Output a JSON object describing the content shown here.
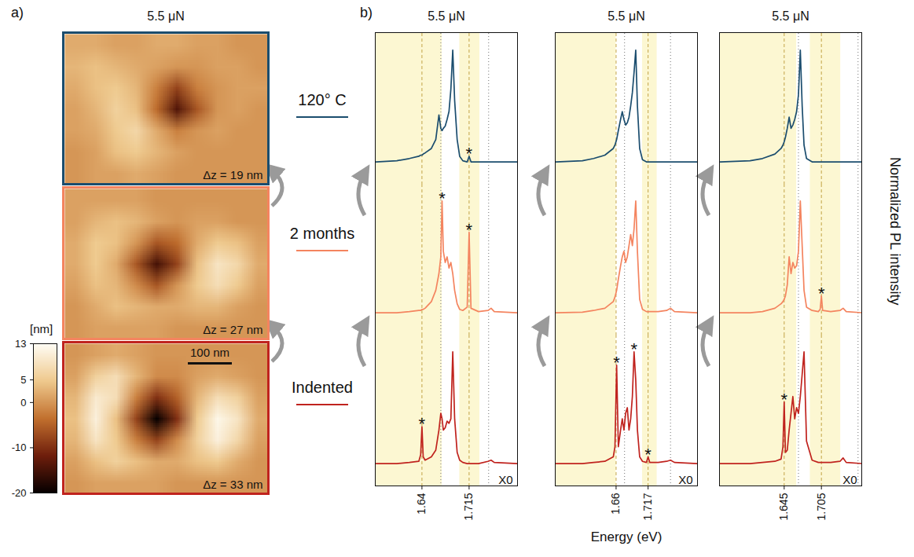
{
  "chart_data": [
    {
      "type": "heatmap",
      "panel_label": "a)",
      "title": "5.5 μN",
      "color": "#1b4d6e",
      "annotation": "Δz = 19 nm",
      "cells": [
        [
          2,
          2,
          1,
          1,
          2,
          2,
          1,
          1,
          0,
          0
        ],
        [
          3,
          4,
          3,
          2,
          1,
          0,
          0,
          1,
          1,
          0
        ],
        [
          2,
          4,
          5,
          3,
          -2,
          -8,
          -2,
          0,
          1,
          1
        ],
        [
          1,
          3,
          6,
          4,
          -4,
          -14,
          -6,
          0,
          1,
          0
        ],
        [
          1,
          2,
          5,
          7,
          2,
          -2,
          0,
          1,
          0,
          0
        ],
        [
          0,
          1,
          4,
          5,
          3,
          1,
          0,
          0,
          0,
          0
        ],
        [
          0,
          1,
          1,
          2,
          1,
          0,
          0,
          0,
          0,
          0
        ]
      ]
    },
    {
      "type": "heatmap",
      "color": "#f4845f",
      "annotation": "Δz = 27 nm",
      "cells": [
        [
          1,
          1,
          1,
          1,
          0,
          0,
          0,
          0,
          0,
          0
        ],
        [
          1,
          3,
          4,
          3,
          1,
          0,
          1,
          1,
          0,
          0
        ],
        [
          2,
          5,
          4,
          0,
          -6,
          -4,
          2,
          5,
          4,
          1
        ],
        [
          2,
          5,
          2,
          -6,
          -15,
          -8,
          4,
          9,
          7,
          2
        ],
        [
          1,
          4,
          3,
          -1,
          -6,
          0,
          5,
          8,
          5,
          1
        ],
        [
          0,
          2,
          4,
          3,
          2,
          2,
          3,
          3,
          1,
          0
        ],
        [
          0,
          1,
          1,
          1,
          1,
          0,
          0,
          0,
          0,
          0
        ]
      ]
    },
    {
      "type": "heatmap",
      "color": "#c0231e",
      "annotation": "Δz = 33 nm",
      "scale_bar": "100 nm",
      "cells": [
        [
          0,
          1,
          2,
          1,
          0,
          0,
          0,
          0,
          0,
          0
        ],
        [
          1,
          6,
          8,
          3,
          -1,
          -1,
          1,
          2,
          1,
          0
        ],
        [
          3,
          10,
          8,
          -2,
          -10,
          -5,
          3,
          8,
          6,
          1
        ],
        [
          4,
          11,
          4,
          -8,
          -20,
          -10,
          5,
          12,
          9,
          2
        ],
        [
          3,
          9,
          5,
          -2,
          -8,
          -1,
          6,
          11,
          7,
          1
        ],
        [
          1,
          4,
          6,
          4,
          2,
          2,
          4,
          5,
          2,
          0
        ],
        [
          0,
          1,
          1,
          1,
          1,
          0,
          0,
          0,
          0,
          0
        ]
      ]
    },
    {
      "type": "colorbar",
      "label": "[nm]",
      "clim": [
        -20,
        13
      ],
      "cticks": [
        13,
        5,
        0,
        -10,
        -20
      ]
    },
    {
      "type": "line",
      "panel_label": "b)",
      "title": "5.5 μN",
      "grid": true,
      "tick_labels": "x",
      "xlim": [
        1.567,
        1.792
      ],
      "xticks": [
        1.64,
        1.715
      ],
      "ylim": [
        -0.2,
        1.15
      ],
      "bands": [
        [
          1.567,
          1.672
        ],
        [
          1.7,
          1.732
        ]
      ],
      "dotted_lines": [
        1.67,
        1.746
      ],
      "annotations": [
        {
          "text": "X0"
        }
      ],
      "x": [
        1.567,
        1.6,
        1.62,
        1.635,
        1.638,
        1.64,
        1.642,
        1.645,
        1.655,
        1.662,
        1.667,
        1.67,
        1.672,
        1.674,
        1.677,
        1.68,
        1.683,
        1.686,
        1.689,
        1.692,
        1.696,
        1.7,
        1.705,
        1.712,
        1.715,
        1.718,
        1.73,
        1.745,
        1.75,
        1.755,
        1.792
      ],
      "series": [
        {
          "name": "120° C",
          "color": "#1b4d6e",
          "annotations": [
            {
              "text": "*",
              "x": 1.715
            }
          ],
          "values": [
            0,
            0.01,
            0.03,
            0.05,
            0.06,
            0.06,
            0.07,
            0.08,
            0.12,
            0.2,
            0.42,
            0.3,
            0.28,
            0.3,
            0.32,
            0.38,
            0.45,
            0.65,
            1,
            0.55,
            0.2,
            0.05,
            0.01,
            0,
            0.05,
            0,
            0,
            0,
            0,
            0,
            0
          ]
        },
        {
          "name": "2 months",
          "color": "#f4845f",
          "annotations": [
            {
              "text": "*",
              "x": 1.672
            },
            {
              "text": "*",
              "x": 1.715
            }
          ],
          "values": [
            0,
            0,
            0.01,
            0.02,
            0.02,
            0.03,
            0.03,
            0.04,
            0.1,
            0.2,
            0.35,
            0.5,
            1,
            0.55,
            0.45,
            0.5,
            0.4,
            0.45,
            0.35,
            0.2,
            0.08,
            0.03,
            0.02,
            0.05,
            0.72,
            0.04,
            0.01,
            0.02,
            0.04,
            0.01,
            0
          ]
        },
        {
          "name": "Indented",
          "color": "#c0231e",
          "annotations": [
            {
              "text": "*",
              "x": 1.64
            }
          ],
          "values": [
            0,
            0,
            0.01,
            0.02,
            0.08,
            0.33,
            0.06,
            0.03,
            0.06,
            0.12,
            0.3,
            0.45,
            0.4,
            0.3,
            0.32,
            0.38,
            0.36,
            0.4,
            1,
            0.4,
            0.1,
            0.03,
            0.01,
            0,
            0,
            0,
            0,
            0.02,
            0.03,
            0.01,
            0
          ]
        }
      ]
    },
    {
      "type": "line",
      "title": "5.5 μN",
      "x_label": "Energy (eV)",
      "grid": true,
      "tick_labels": "x",
      "xlim": [
        1.553,
        1.805
      ],
      "xticks": [
        1.66,
        1.717
      ],
      "ylim": [
        -0.2,
        1.15
      ],
      "bands": [
        [
          1.553,
          1.66
        ],
        [
          1.707,
          1.733
        ]
      ],
      "dotted_lines": [
        1.675,
        1.757
      ],
      "annotations": [
        {
          "text": "X0"
        }
      ],
      "x": [
        1.553,
        1.6,
        1.62,
        1.64,
        1.655,
        1.658,
        1.661,
        1.664,
        1.668,
        1.671,
        1.674,
        1.677,
        1.68,
        1.683,
        1.686,
        1.689,
        1.692,
        1.695,
        1.698,
        1.702,
        1.707,
        1.714,
        1.717,
        1.72,
        1.735,
        1.75,
        1.757,
        1.764,
        1.805
      ],
      "series": [
        {
          "name": "120° C",
          "color": "#1b4d6e",
          "values": [
            0,
            0.01,
            0.03,
            0.06,
            0.12,
            0.15,
            0.2,
            0.28,
            0.38,
            0.45,
            0.38,
            0.33,
            0.35,
            0.4,
            0.5,
            0.62,
            0.8,
            1,
            0.5,
            0.12,
            0.02,
            0,
            0,
            0,
            0,
            0,
            0,
            0,
            0
          ]
        },
        {
          "name": "2 months",
          "color": "#f4845f",
          "values": [
            0,
            0.005,
            0.02,
            0.04,
            0.1,
            0.14,
            0.2,
            0.3,
            0.42,
            0.5,
            0.55,
            0.45,
            0.5,
            0.6,
            0.7,
            0.6,
            0.75,
            1,
            0.55,
            0.12,
            0.03,
            0.01,
            0.01,
            0.01,
            0.01,
            0.02,
            0.04,
            0.01,
            0
          ]
        },
        {
          "name": "Indented",
          "color": "#c0231e",
          "annotations": [
            {
              "text": "*",
              "x": 1.661
            },
            {
              "text": "*",
              "x": 1.692
            },
            {
              "text": "*",
              "x": 1.717
            }
          ],
          "values": [
            0,
            0,
            0.01,
            0.02,
            0.06,
            0.15,
            0.88,
            0.15,
            0.3,
            0.4,
            0.3,
            0.45,
            0.5,
            0.3,
            0.4,
            0.6,
            1,
            0.75,
            0.3,
            0.06,
            0.02,
            0.01,
            0.06,
            0.01,
            0.01,
            0.02,
            0.03,
            0.01,
            0
          ]
        }
      ]
    },
    {
      "type": "line",
      "title": "5.5 μN",
      "y_label": "Normalized PL intensity",
      "grid": true,
      "tick_labels": "x",
      "xlim": [
        1.542,
        1.77
      ],
      "xticks": [
        1.645,
        1.705
      ],
      "ylim": [
        -0.2,
        1.15
      ],
      "bands": [
        [
          1.542,
          1.665
        ],
        [
          1.687,
          1.736
        ]
      ],
      "dotted_lines": [
        1.668,
        1.764
      ],
      "annotations": [
        {
          "text": "X0"
        }
      ],
      "x": [
        1.542,
        1.59,
        1.61,
        1.63,
        1.64,
        1.643,
        1.645,
        1.647,
        1.65,
        1.653,
        1.656,
        1.659,
        1.662,
        1.665,
        1.668,
        1.671,
        1.674,
        1.677,
        1.681,
        1.69,
        1.7,
        1.703,
        1.705,
        1.707,
        1.72,
        1.735,
        1.74,
        1.745,
        1.77
      ],
      "series": [
        {
          "name": "120° C",
          "color": "#1b4d6e",
          "values": [
            0,
            0.01,
            0.03,
            0.07,
            0.12,
            0.15,
            0.18,
            0.22,
            0.3,
            0.4,
            0.3,
            0.33,
            0.38,
            0.45,
            0.6,
            1,
            0.5,
            0.15,
            0.03,
            0,
            0,
            0,
            0,
            0,
            0,
            0,
            0,
            0,
            0
          ]
        },
        {
          "name": "2 months",
          "color": "#f4845f",
          "annotations": [
            {
              "text": "*",
              "x": 1.705
            }
          ],
          "values": [
            0,
            0,
            0.01,
            0.04,
            0.08,
            0.1,
            0.12,
            0.15,
            0.25,
            0.5,
            0.35,
            0.45,
            0.4,
            0.42,
            0.55,
            1,
            0.6,
            0.2,
            0.05,
            0.02,
            0.01,
            0.03,
            0.15,
            0.02,
            0.01,
            0.02,
            0.04,
            0.01,
            0
          ]
        },
        {
          "name": "Indented",
          "color": "#c0231e",
          "annotations": [
            {
              "text": "*",
              "x": 1.645
            }
          ],
          "values": [
            0,
            0,
            0.01,
            0.02,
            0.04,
            0.15,
            0.55,
            0.1,
            0.12,
            0.3,
            0.45,
            0.6,
            0.4,
            0.5,
            0.45,
            0.6,
            0.8,
            1,
            0.2,
            0.03,
            0.01,
            0.01,
            0.01,
            0.01,
            0.01,
            0.02,
            0.05,
            0.01,
            0
          ]
        }
      ]
    }
  ]
}
